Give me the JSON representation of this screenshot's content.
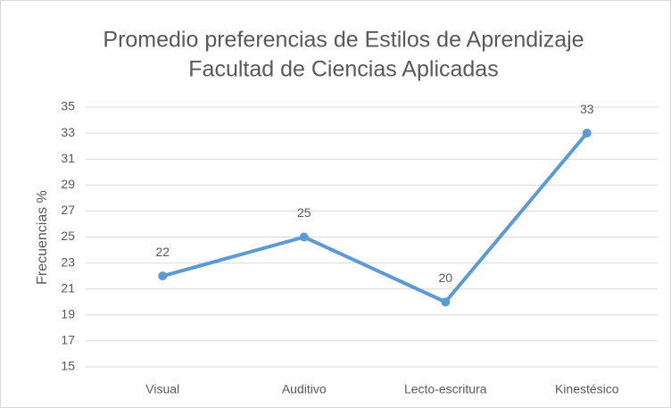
{
  "chart_data": {
    "type": "line",
    "title": [
      "Promedio preferencias de Estilos de Aprendizaje",
      "Facultad de Ciencias Aplicadas"
    ],
    "y_label": "Frecuencias %",
    "categories": [
      "Visual",
      "Auditivo",
      "Lecto-escritura",
      "Kinestésico"
    ],
    "values": [
      22,
      25,
      20,
      33
    ],
    "color": "#5b9bd5",
    "ylim": [
      15,
      35
    ],
    "yticks": [
      15,
      17,
      19,
      21,
      23,
      25,
      27,
      29,
      31,
      33,
      35
    ],
    "grid": true
  }
}
